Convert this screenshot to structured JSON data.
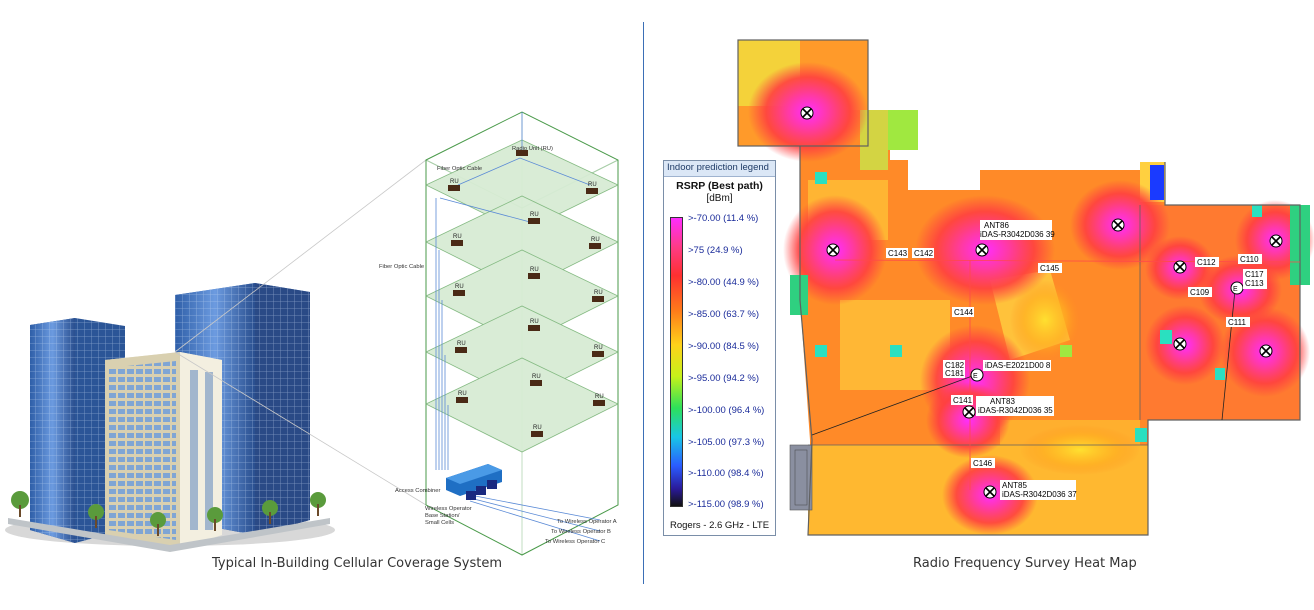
{
  "left": {
    "caption": "Typical In-Building Cellular Coverage System",
    "diagram": {
      "radio_unit_label": "Radio Unit (RU)",
      "fiber_label_top": "Fiber Optic Cable",
      "fiber_label_side": "Fiber Optic Cable",
      "ru_label": "RU",
      "access_combiner_label": "Access Combiner",
      "base_station_label_1": "Wireless Operator",
      "base_station_label_2": "Base Station/",
      "base_station_label_3": "Small Cells",
      "operator_a": "To Wireless Operator A",
      "operator_b": "To Wireless Operator B",
      "operator_c": "To Wireless Operator C"
    }
  },
  "right": {
    "caption": "Radio Frequency Survey Heat Map",
    "legend": {
      "header": "Indoor prediction legend",
      "title": "RSRP (Best path)",
      "unit": "[dBm]",
      "items": [
        ">-70.00 (11.4 %)",
        ">75 (24.9 %)",
        ">-80.00 (44.9 %)",
        ">-85.00 (63.7 %)",
        ">-90.00 (84.5 %)",
        ">-95.00 (94.2 %)",
        ">-100.00 (96.4 %)",
        ">-105.00 (97.3 %)",
        ">-110.00 (98.4 %)",
        ">-115.00 (98.9 %)"
      ],
      "footer": "Rogers - 2.6 GHz - LTE"
    },
    "map_labels": {
      "ant86_1": "ANT86",
      "ant86_2": "iDAS-R3042D036 39",
      "c143": "C143",
      "c142": "C142",
      "c145": "C145",
      "c144": "C144",
      "c182": "C182",
      "c181": "C181",
      "idas_e": "iDAS-E2021D00 8",
      "c141": "C141",
      "ant83_1": "ANT83",
      "ant83_2": "iDAS-R3042D036 35",
      "c146": "C146",
      "ant85_1": "ANT85",
      "ant85_2": "iDAS-R3042D036 37",
      "c112": "C112",
      "c110": "C110",
      "c117": "C117",
      "c113": "C113",
      "c109": "C109",
      "c111": "C111"
    }
  }
}
